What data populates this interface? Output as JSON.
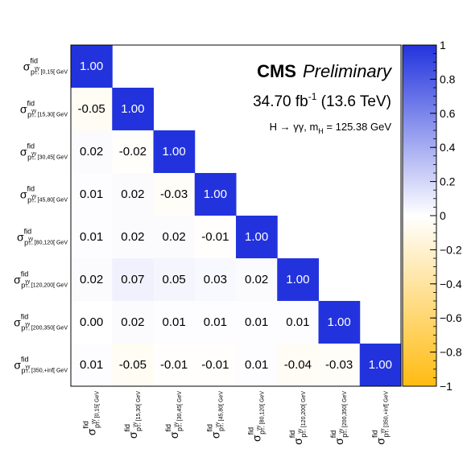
{
  "chart_data": {
    "type": "heatmap",
    "title": "",
    "xlabel": "",
    "ylabel": "",
    "categories": [
      {
        "main": "σ",
        "sup": "fid",
        "sub": "p",
        "subsup": "γγ",
        "subsub": "T",
        "range": ", [0,15[ GeV"
      },
      {
        "main": "σ",
        "sup": "fid",
        "sub": "p",
        "subsup": "γγ",
        "subsub": "T",
        "range": ", [15,30[ GeV"
      },
      {
        "main": "σ",
        "sup": "fid",
        "sub": "p",
        "subsup": "γγ",
        "subsub": "T",
        "range": ", [30,45[ GeV"
      },
      {
        "main": "σ",
        "sup": "fid",
        "sub": "p",
        "subsup": "γγ",
        "subsub": "T",
        "range": ", [45,80[ GeV"
      },
      {
        "main": "σ",
        "sup": "fid",
        "sub": "p",
        "subsup": "γγ",
        "subsub": "T",
        "range": ", [80,120[ GeV"
      },
      {
        "main": "σ",
        "sup": "fid",
        "sub": "p",
        "subsup": "γγ",
        "subsub": "T",
        "range": ", [120,200[ GeV"
      },
      {
        "main": "σ",
        "sup": "fid",
        "sub": "p",
        "subsup": "γγ",
        "subsub": "T",
        "range": ", [200,350[ GeV"
      },
      {
        "main": "σ",
        "sup": "fid",
        "sub": "p",
        "subsup": "γγ",
        "subsub": "T",
        "range": ", [350,+inf[ GeV"
      }
    ],
    "values": [
      [
        1.0
      ],
      [
        -0.05,
        1.0
      ],
      [
        0.02,
        -0.02,
        1.0
      ],
      [
        0.01,
        0.02,
        -0.03,
        1.0
      ],
      [
        0.01,
        0.02,
        0.02,
        -0.01,
        1.0
      ],
      [
        0.02,
        0.07,
        0.05,
        0.03,
        0.02,
        1.0
      ],
      [
        0.0,
        0.02,
        0.01,
        0.01,
        0.01,
        0.01,
        1.0
      ],
      [
        0.01,
        -0.05,
        -0.01,
        -0.01,
        0.01,
        -0.04,
        -0.03,
        1.0
      ]
    ],
    "labels": [
      [
        "1.00"
      ],
      [
        "-0.05",
        "1.00"
      ],
      [
        "0.02",
        "-0.02",
        "1.00"
      ],
      [
        "0.01",
        "0.02",
        "-0.03",
        "1.00"
      ],
      [
        "0.01",
        "0.02",
        "0.02",
        "-0.01",
        "1.00"
      ],
      [
        "0.02",
        "0.07",
        "0.05",
        "0.03",
        "0.02",
        "1.00"
      ],
      [
        "0.00",
        "0.02",
        "0.01",
        "0.01",
        "0.01",
        "0.01",
        "1.00"
      ],
      [
        "0.01",
        "-0.05",
        "-0.01",
        "-0.01",
        "0.01",
        "-0.04",
        "-0.03",
        "1.00"
      ]
    ],
    "zlim": [
      -1,
      1
    ],
    "colorbar_ticks": [
      {
        "value": 1,
        "label": "1"
      },
      {
        "value": 0.8,
        "label": "0.8"
      },
      {
        "value": 0.6,
        "label": "0.6"
      },
      {
        "value": 0.4,
        "label": "0.4"
      },
      {
        "value": 0.2,
        "label": "0.2"
      },
      {
        "value": 0,
        "label": "0"
      },
      {
        "value": -0.2,
        "label": "−0.2"
      },
      {
        "value": -0.4,
        "label": "−0.4"
      },
      {
        "value": -0.6,
        "label": "−0.6"
      },
      {
        "value": -0.8,
        "label": "−0.8"
      },
      {
        "value": -1,
        "label": "−1"
      }
    ],
    "colors": {
      "positive": "#2233dd",
      "zero": "#ffffff",
      "negative": "#ffbb11"
    },
    "annotations": {
      "experiment": "CMS",
      "status": "Preliminary",
      "lumi_value": "34.70 fb",
      "lumi_exp": "-1",
      "energy": " (13.6 TeV)",
      "process": "H → γγ, m",
      "process_sub": "H",
      "process_mass": " = 125.38 GeV"
    }
  }
}
